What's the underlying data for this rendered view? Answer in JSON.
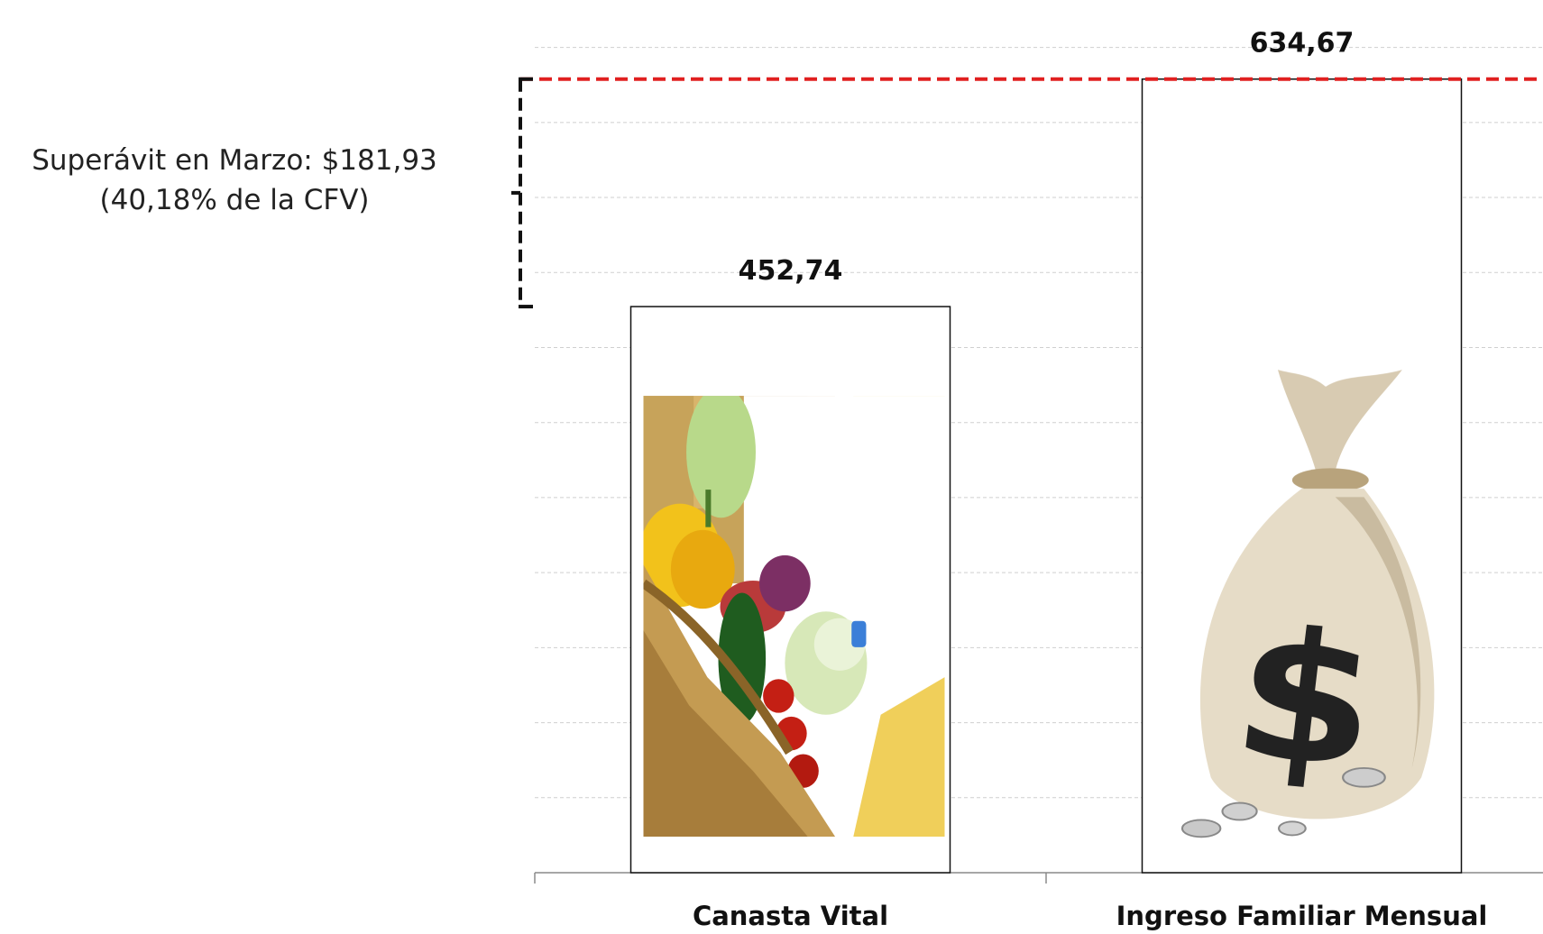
{
  "chart_data": {
    "type": "bar",
    "categories": [
      "Canasta Vital",
      "Ingreso Familiar Mensual"
    ],
    "values": [
      452.74,
      634.67
    ],
    "value_labels": [
      "452,74",
      "634,67"
    ],
    "bar_fill_images": [
      "food-basket-image",
      "money-bag-image"
    ],
    "reference_line": {
      "value": 634.67,
      "color": "#e02020",
      "style": "dashed"
    },
    "bracket": {
      "from": 452.74,
      "to": 634.67,
      "style": "dashed",
      "color": "#111111"
    },
    "annotation": {
      "line1": "Superávit en  Marzo: $181,93",
      "line2": "(40,18% de la CFV)"
    },
    "ylim": [
      0,
      690
    ],
    "grid": true,
    "gridline_step": 60,
    "legend": "none",
    "title": "",
    "xlabel": "",
    "ylabel": ""
  }
}
